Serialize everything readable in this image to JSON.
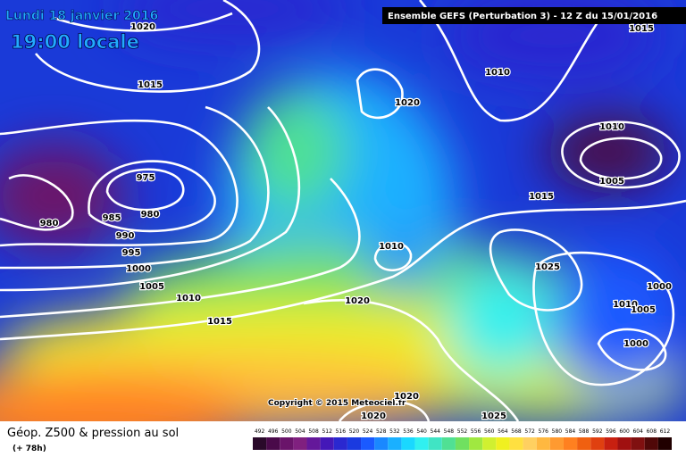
{
  "header": {
    "date": "Lundi 18 janvier 2016",
    "time": "19:00 locale",
    "run": "Ensemble GEFS  (Perturbation 3)  -  12 Z du 15/01/2016"
  },
  "isobar_labels": [
    "1020",
    "1015",
    "1010",
    "1015",
    "1020",
    "1010",
    "1005",
    "975",
    "980",
    "985",
    "980",
    "990",
    "995",
    "1000",
    "1005",
    "1010",
    "1015",
    "1020",
    "1010",
    "1015",
    "1025",
    "1000",
    "1010",
    "1005",
    "1000",
    "1020",
    "1020",
    "1025"
  ],
  "copyright": "Copyright © 2015 Meteociel.fr",
  "footer": {
    "title": "Géop. Z500 & pression au sol",
    "lead": "(+ 78h)"
  },
  "legend": {
    "values": [
      492,
      496,
      500,
      504,
      508,
      512,
      516,
      520,
      524,
      528,
      532,
      536,
      540,
      544,
      548,
      552,
      556,
      560,
      564,
      568,
      572,
      576,
      580,
      584,
      588,
      592,
      596,
      600,
      604,
      608,
      612
    ],
    "colors": [
      "#2a0a2a",
      "#4a0a4a",
      "#6a146a",
      "#80207f",
      "#64189a",
      "#4418b8",
      "#2a28d0",
      "#1a3ae0",
      "#1a5aff",
      "#1a88ff",
      "#1ab0ff",
      "#1ad8ff",
      "#30f0f0",
      "#40e4c4",
      "#50e094",
      "#70e060",
      "#a0e840",
      "#d0f030",
      "#f0f020",
      "#ffe040",
      "#ffd060",
      "#ffb840",
      "#ff9a30",
      "#ff8020",
      "#f06010",
      "#e04010",
      "#c82010",
      "#a01010",
      "#801010",
      "#500808",
      "#200000"
    ]
  }
}
